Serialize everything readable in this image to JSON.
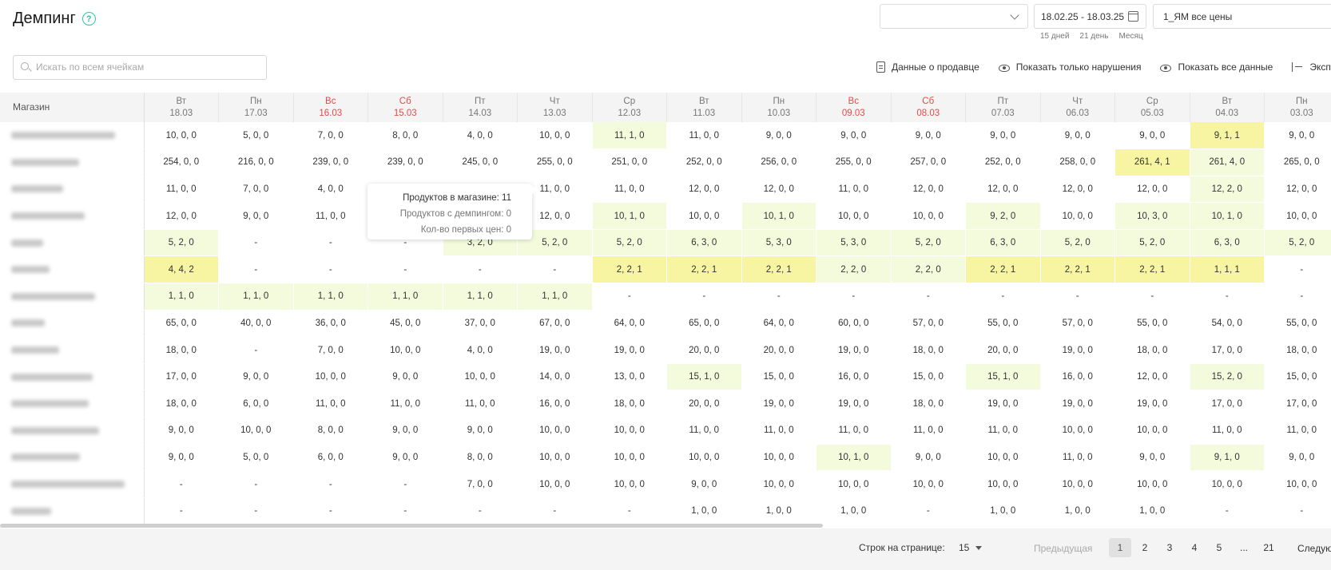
{
  "header": {
    "title": "Демпинг",
    "help_icon": "?",
    "seller_select_value": "",
    "date_range": "18.02.25 - 18.03.25",
    "quick_ranges": [
      "15 дней",
      "21 день",
      "Месяц"
    ],
    "price_select_value": "1_ЯМ все цены"
  },
  "search": {
    "placeholder": "Искать по всем ячейкам",
    "value": ""
  },
  "toolbar": {
    "seller_data": "Данные о продавце",
    "show_violations": "Показать только нарушения",
    "show_all": "Показать все данные",
    "export": "Экспорт"
  },
  "table": {
    "shop_header": "Магазин",
    "columns": [
      {
        "day": "Вт",
        "date": "18.03",
        "weekend": false
      },
      {
        "day": "Пн",
        "date": "17.03",
        "weekend": false
      },
      {
        "day": "Вс",
        "date": "16.03",
        "weekend": true
      },
      {
        "day": "Сб",
        "date": "15.03",
        "weekend": true
      },
      {
        "day": "Пт",
        "date": "14.03",
        "weekend": false
      },
      {
        "day": "Чт",
        "date": "13.03",
        "weekend": false
      },
      {
        "day": "Ср",
        "date": "12.03",
        "weekend": false
      },
      {
        "day": "Вт",
        "date": "11.03",
        "weekend": false
      },
      {
        "day": "Пн",
        "date": "10.03",
        "weekend": false
      },
      {
        "day": "Вс",
        "date": "09.03",
        "weekend": true
      },
      {
        "day": "Сб",
        "date": "08.03",
        "weekend": true
      },
      {
        "day": "Пт",
        "date": "07.03",
        "weekend": false
      },
      {
        "day": "Чт",
        "date": "06.03",
        "weekend": false
      },
      {
        "day": "Ср",
        "date": "05.03",
        "weekend": false
      },
      {
        "day": "Вт",
        "date": "04.03",
        "weekend": false
      },
      {
        "day": "Пн",
        "date": "03.03",
        "weekend": false
      }
    ],
    "rows": [
      {
        "shop_name_width": 130,
        "cells": [
          "10, 0, 0",
          "5, 0, 0",
          "7, 0, 0",
          "8, 0, 0",
          "4, 0, 0",
          "10, 0, 0",
          "11, 1, 0",
          "11, 0, 0",
          "9, 0, 0",
          "9, 0, 0",
          "9, 0, 0",
          "9, 0, 0",
          "9, 0, 0",
          "9, 0, 0",
          "9, 1, 1",
          "9, 0, 0"
        ],
        "levels": [
          0,
          0,
          0,
          0,
          0,
          0,
          1,
          0,
          0,
          0,
          0,
          0,
          0,
          0,
          2,
          0
        ]
      },
      {
        "shop_name_width": 85,
        "cells": [
          "254, 0, 0",
          "216, 0, 0",
          "239, 0, 0",
          "239, 0, 0",
          "245, 0, 0",
          "255, 0, 0",
          "251, 0, 0",
          "252, 0, 0",
          "256, 0, 0",
          "255, 0, 0",
          "257, 0, 0",
          "252, 0, 0",
          "258, 0, 0",
          "261, 4, 1",
          "261, 4, 0",
          "265, 0, 0"
        ],
        "levels": [
          0,
          0,
          0,
          0,
          0,
          0,
          0,
          0,
          0,
          0,
          0,
          0,
          0,
          2,
          1,
          0
        ]
      },
      {
        "shop_name_width": 65,
        "cells": [
          "11, 0, 0",
          "7, 0, 0",
          "4, 0, 0",
          "",
          "",
          "11, 0, 0",
          "11, 0, 0",
          "12, 0, 0",
          "12, 0, 0",
          "11, 0, 0",
          "12, 0, 0",
          "12, 0, 0",
          "12, 0, 0",
          "12, 0, 0",
          "12, 2, 0",
          "12, 0, 0"
        ],
        "levels": [
          0,
          0,
          0,
          0,
          0,
          0,
          0,
          0,
          0,
          0,
          0,
          0,
          0,
          0,
          1,
          0
        ]
      },
      {
        "shop_name_width": 92,
        "cells": [
          "12, 0, 0",
          "9, 0, 0",
          "11, 0, 0",
          "",
          "",
          "12, 0, 0",
          "10, 1, 0",
          "10, 0, 0",
          "10, 1, 0",
          "10, 0, 0",
          "10, 0, 0",
          "9, 2, 0",
          "10, 0, 0",
          "10, 3, 0",
          "10, 1, 0",
          "10, 0, 0"
        ],
        "levels": [
          0,
          0,
          0,
          0,
          0,
          0,
          1,
          0,
          1,
          0,
          0,
          1,
          0,
          1,
          1,
          0
        ]
      },
      {
        "shop_name_width": 40,
        "cells": [
          "5, 2, 0",
          "-",
          "-",
          "-",
          "3, 2, 0",
          "5, 2, 0",
          "5, 2, 0",
          "6, 3, 0",
          "5, 3, 0",
          "5, 3, 0",
          "5, 2, 0",
          "6, 3, 0",
          "5, 2, 0",
          "5, 2, 0",
          "6, 3, 0",
          "5, 2, 0"
        ],
        "levels": [
          1,
          0,
          0,
          0,
          1,
          1,
          1,
          1,
          1,
          1,
          1,
          1,
          1,
          1,
          1,
          1
        ]
      },
      {
        "shop_name_width": 48,
        "cells": [
          "4, 4, 2",
          "-",
          "-",
          "-",
          "-",
          "-",
          "2, 2, 1",
          "2, 2, 1",
          "2, 2, 1",
          "2, 2, 0",
          "2, 2, 0",
          "2, 2, 1",
          "2, 2, 1",
          "2, 2, 1",
          "1, 1, 1",
          "-"
        ],
        "levels": [
          2,
          0,
          0,
          0,
          0,
          0,
          2,
          2,
          2,
          1,
          1,
          2,
          2,
          2,
          2,
          0
        ]
      },
      {
        "shop_name_width": 105,
        "cells": [
          "1, 1, 0",
          "1, 1, 0",
          "1, 1, 0",
          "1, 1, 0",
          "1, 1, 0",
          "1, 1, 0",
          "-",
          "-",
          "-",
          "-",
          "-",
          "-",
          "-",
          "-",
          "-",
          "-"
        ],
        "levels": [
          1,
          1,
          1,
          1,
          1,
          1,
          0,
          0,
          0,
          0,
          0,
          0,
          0,
          0,
          0,
          0
        ]
      },
      {
        "shop_name_width": 42,
        "cells": [
          "65, 0, 0",
          "40, 0, 0",
          "36, 0, 0",
          "45, 0, 0",
          "37, 0, 0",
          "67, 0, 0",
          "64, 0, 0",
          "65, 0, 0",
          "64, 0, 0",
          "60, 0, 0",
          "57, 0, 0",
          "55, 0, 0",
          "57, 0, 0",
          "55, 0, 0",
          "54, 0, 0",
          "55, 0, 0"
        ],
        "levels": [
          0,
          0,
          0,
          0,
          0,
          0,
          0,
          0,
          0,
          0,
          0,
          0,
          0,
          0,
          0,
          0
        ]
      },
      {
        "shop_name_width": 60,
        "cells": [
          "18, 0, 0",
          "-",
          "7, 0, 0",
          "10, 0, 0",
          "4, 0, 0",
          "19, 0, 0",
          "19, 0, 0",
          "20, 0, 0",
          "20, 0, 0",
          "19, 0, 0",
          "18, 0, 0",
          "20, 0, 0",
          "19, 0, 0",
          "18, 0, 0",
          "17, 0, 0",
          "18, 0, 0"
        ],
        "levels": [
          0,
          0,
          0,
          0,
          0,
          0,
          0,
          0,
          0,
          0,
          0,
          0,
          0,
          0,
          0,
          0
        ]
      },
      {
        "shop_name_width": 102,
        "cells": [
          "17, 0, 0",
          "9, 0, 0",
          "10, 0, 0",
          "9, 0, 0",
          "10, 0, 0",
          "14, 0, 0",
          "13, 0, 0",
          "15, 1, 0",
          "15, 0, 0",
          "16, 0, 0",
          "15, 0, 0",
          "15, 1, 0",
          "16, 0, 0",
          "12, 0, 0",
          "15, 2, 0",
          "15, 0, 0"
        ],
        "levels": [
          0,
          0,
          0,
          0,
          0,
          0,
          0,
          1,
          0,
          0,
          0,
          1,
          0,
          0,
          1,
          0
        ]
      },
      {
        "shop_name_width": 97,
        "cells": [
          "18, 0, 0",
          "6, 0, 0",
          "11, 0, 0",
          "11, 0, 0",
          "11, 0, 0",
          "16, 0, 0",
          "18, 0, 0",
          "20, 0, 0",
          "19, 0, 0",
          "19, 0, 0",
          "18, 0, 0",
          "19, 0, 0",
          "19, 0, 0",
          "19, 0, 0",
          "17, 0, 0",
          "17, 0, 0"
        ],
        "levels": [
          0,
          0,
          0,
          0,
          0,
          0,
          0,
          0,
          0,
          0,
          0,
          0,
          0,
          0,
          0,
          0
        ]
      },
      {
        "shop_name_width": 110,
        "cells": [
          "9, 0, 0",
          "10, 0, 0",
          "8, 0, 0",
          "9, 0, 0",
          "9, 0, 0",
          "10, 0, 0",
          "10, 0, 0",
          "11, 0, 0",
          "11, 0, 0",
          "11, 0, 0",
          "11, 0, 0",
          "11, 0, 0",
          "10, 0, 0",
          "10, 0, 0",
          "11, 0, 0",
          "11, 0, 0"
        ],
        "levels": [
          0,
          0,
          0,
          0,
          0,
          0,
          0,
          0,
          0,
          0,
          0,
          0,
          0,
          0,
          0,
          0
        ]
      },
      {
        "shop_name_width": 86,
        "cells": [
          "9, 0, 0",
          "5, 0, 0",
          "6, 0, 0",
          "9, 0, 0",
          "8, 0, 0",
          "10, 0, 0",
          "10, 0, 0",
          "10, 0, 0",
          "10, 0, 0",
          "10, 1, 0",
          "9, 0, 0",
          "10, 0, 0",
          "11, 0, 0",
          "9, 0, 0",
          "9, 1, 0",
          "9, 0, 0"
        ],
        "levels": [
          0,
          0,
          0,
          0,
          0,
          0,
          0,
          0,
          0,
          1,
          0,
          0,
          0,
          0,
          1,
          0
        ]
      },
      {
        "shop_name_width": 142,
        "cells": [
          "-",
          "-",
          "-",
          "-",
          "7, 0, 0",
          "10, 0, 0",
          "10, 0, 0",
          "9, 0, 0",
          "10, 0, 0",
          "10, 0, 0",
          "10, 0, 0",
          "10, 0, 0",
          "10, 0, 0",
          "10, 0, 0",
          "10, 0, 0",
          "10, 0, 0"
        ],
        "levels": [
          0,
          0,
          0,
          0,
          0,
          0,
          0,
          0,
          0,
          0,
          0,
          0,
          0,
          0,
          0,
          0
        ]
      },
      {
        "shop_name_width": 50,
        "cells": [
          "-",
          "-",
          "-",
          "-",
          "-",
          "-",
          "-",
          "1, 0, 0",
          "1, 0, 0",
          "1, 0, 0",
          "-",
          "1, 0, 0",
          "1, 0, 0",
          "1, 0, 0",
          "-",
          "-"
        ],
        "levels": [
          0,
          0,
          0,
          0,
          0,
          0,
          0,
          0,
          0,
          0,
          0,
          0,
          0,
          0,
          0,
          0
        ]
      }
    ]
  },
  "tooltip": {
    "products_in_shop": "Продуктов в магазине: 11",
    "products_dumping": "Продуктов с демпингом: 0",
    "first_prices": "Кол-во первых цен: 0"
  },
  "pagination": {
    "rows_per_page_label": "Строк на странице:",
    "rows_per_page_value": "15",
    "prev": "Предыдущая",
    "pages": [
      "1",
      "2",
      "3",
      "4",
      "5",
      "...",
      "21"
    ],
    "active_page": "1",
    "next": "Следующая"
  },
  "colors": {
    "accent": "#2fc6a0",
    "weekend": "#e34b4b",
    "level1": "#f4fbdd",
    "level2": "#f7f5a2"
  }
}
